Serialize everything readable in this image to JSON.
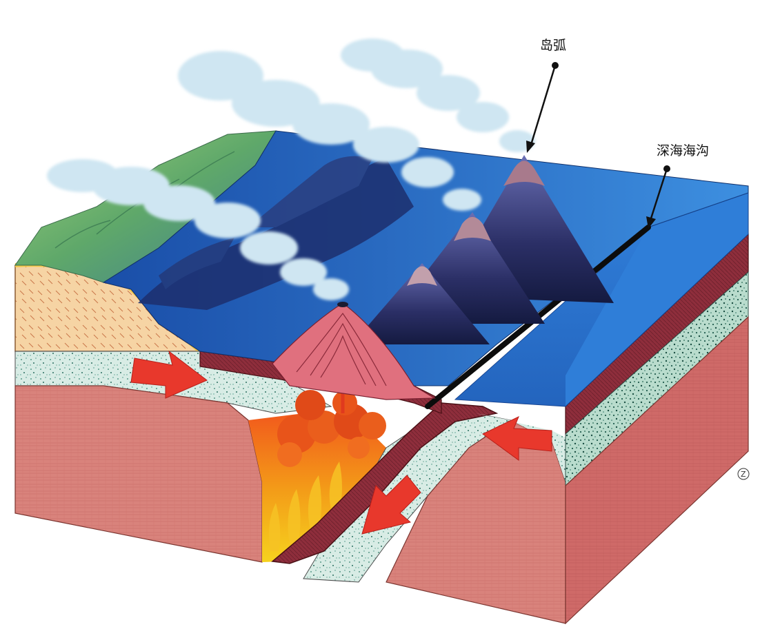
{
  "labels": {
    "island_arc": "岛弧",
    "deep_sea_trench": "深海海沟",
    "corner_mark": "Z"
  },
  "colors": {
    "ocean_top": "#1f56b5",
    "ocean_light": "#3d8fe0",
    "ocean_deep": "#173f90",
    "crust": "#8c2c3a",
    "lithosphere_speckle": "#cfe8e0",
    "mantle": "#d97872",
    "continent_sediment": "#f4c98b",
    "magma": "#f08a18",
    "arrow": "#e8382c",
    "steam": "#cfe6f2"
  },
  "icons": {
    "arrows": [
      "arrow-right-icon",
      "arrow-left-icon",
      "arrow-down-left-icon"
    ]
  }
}
